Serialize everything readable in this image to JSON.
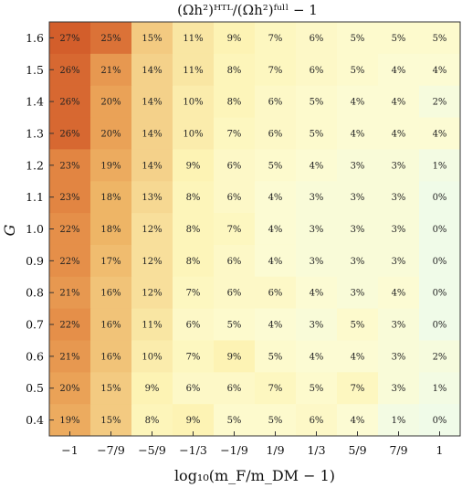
{
  "chart_data": {
    "type": "heatmap",
    "title": "(Ωh²)ᴴᵀᴸ/(Ωh²)ᶠᵘˡˡ − 1",
    "xlabel": "log₁₀(m_F/m_DM − 1)",
    "ylabel": "G",
    "x_ticks": [
      "−1",
      "−7/9",
      "−5/9",
      "−1/3",
      "−1/9",
      "1/9",
      "1/3",
      "5/9",
      "7/9",
      "1"
    ],
    "y_ticks": [
      "1.6",
      "1.5",
      "1.4",
      "1.3",
      "1.2",
      "1.1",
      "1.0",
      "0.9",
      "0.8",
      "0.7",
      "0.6",
      "0.5",
      "0.4"
    ],
    "value_suffix": "%",
    "values": [
      [
        27,
        25,
        15,
        11,
        9,
        7,
        6,
        5,
        5,
        5
      ],
      [
        26,
        21,
        14,
        11,
        8,
        7,
        6,
        5,
        4,
        4
      ],
      [
        26,
        20,
        14,
        10,
        8,
        6,
        5,
        4,
        4,
        2
      ],
      [
        26,
        20,
        14,
        10,
        7,
        6,
        5,
        4,
        4,
        4
      ],
      [
        23,
        19,
        14,
        9,
        6,
        5,
        4,
        3,
        3,
        1
      ],
      [
        23,
        18,
        13,
        8,
        6,
        4,
        3,
        3,
        3,
        0
      ],
      [
        22,
        18,
        12,
        8,
        7,
        4,
        3,
        3,
        3,
        0
      ],
      [
        22,
        17,
        12,
        8,
        6,
        4,
        3,
        3,
        3,
        0
      ],
      [
        21,
        16,
        12,
        7,
        6,
        6,
        4,
        3,
        4,
        0
      ],
      [
        22,
        16,
        11,
        6,
        5,
        4,
        3,
        5,
        3,
        0
      ],
      [
        21,
        16,
        10,
        7,
        9,
        5,
        4,
        4,
        3,
        2
      ],
      [
        20,
        15,
        9,
        6,
        6,
        7,
        5,
        7,
        3,
        1
      ],
      [
        19,
        15,
        8,
        9,
        5,
        5,
        6,
        4,
        1,
        0
      ]
    ],
    "colormap": [
      "#f0fbe8",
      "#fdfbd0",
      "#fdf3b4",
      "#f5d58e",
      "#eeb566",
      "#e48a45",
      "#d35e2b"
    ],
    "vmin": 0,
    "vmax": 27,
    "grid": false
  }
}
